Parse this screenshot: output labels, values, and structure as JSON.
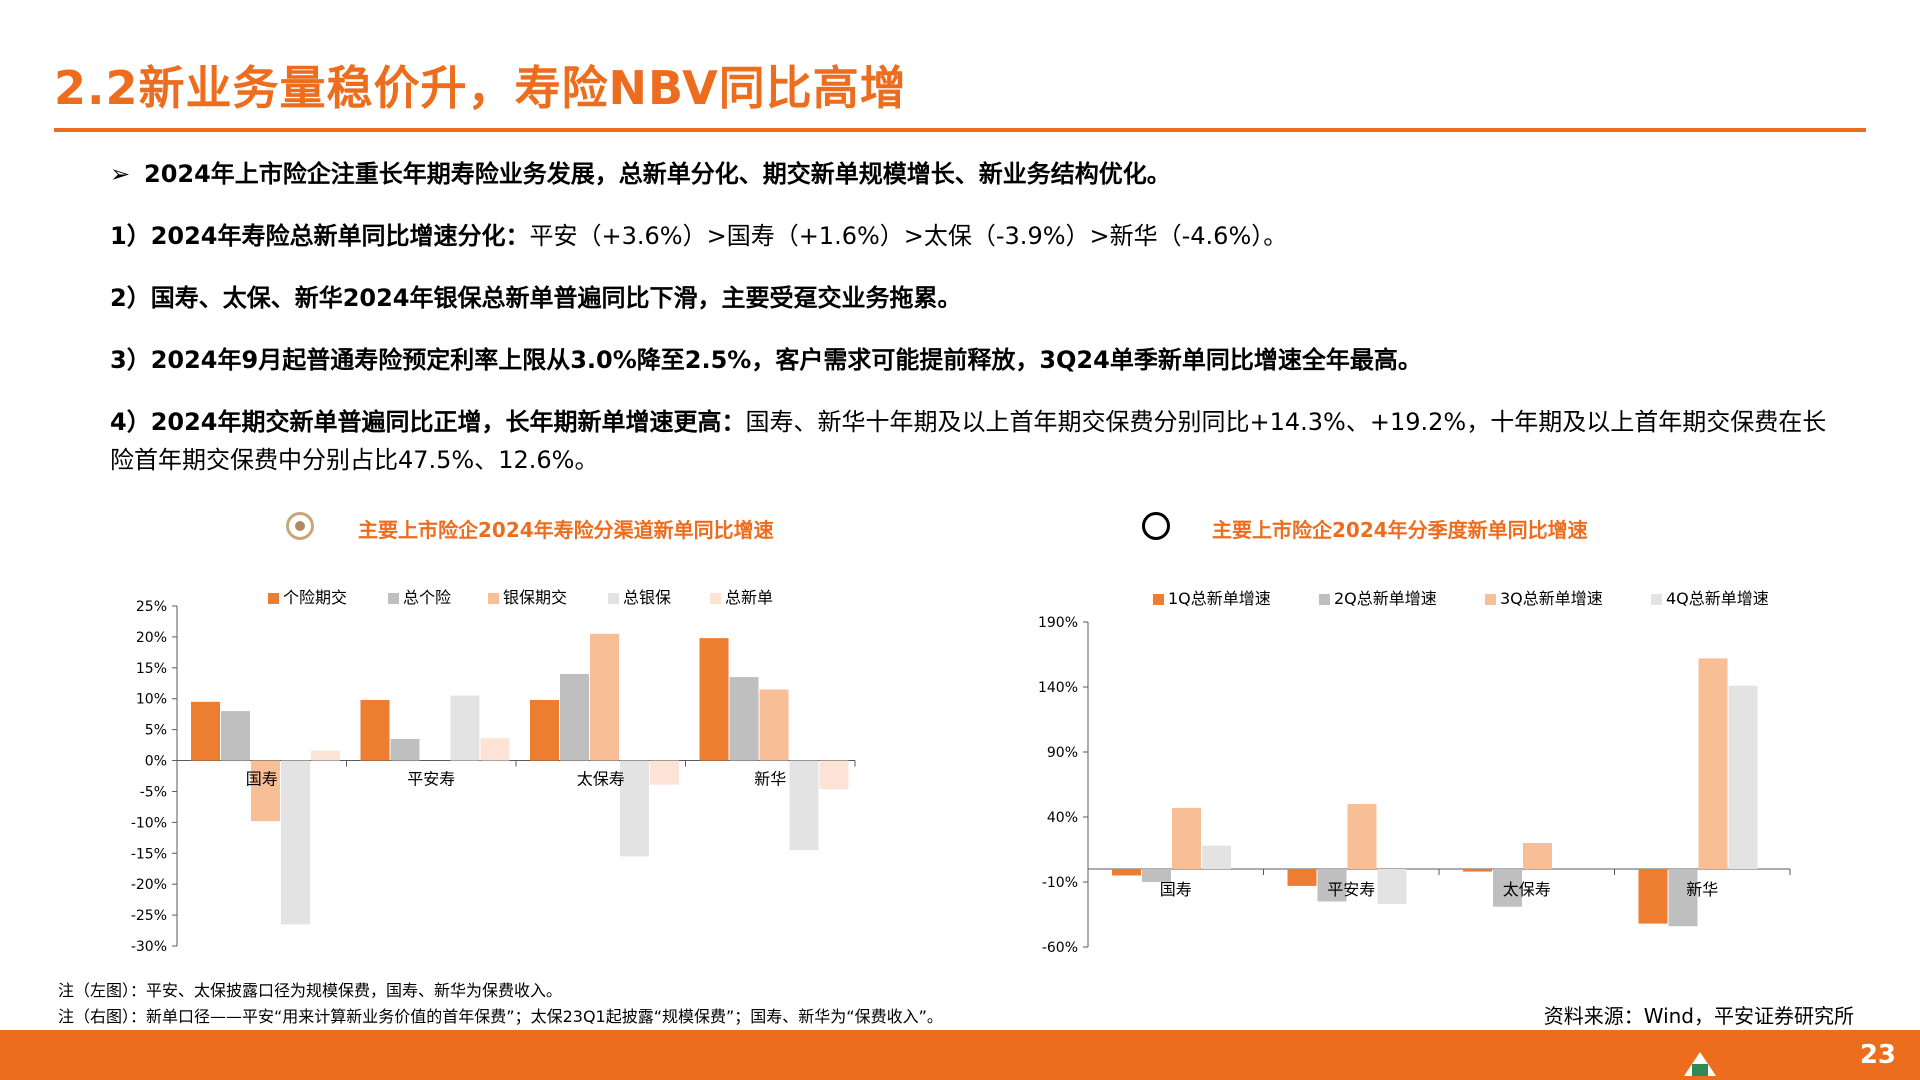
{
  "title": "2.2新业务量稳价升，寿险NBV同比高增",
  "bullets": {
    "lead": {
      "marker": "➢",
      "text": "2024年上市险企注重长年期寿险业务发展，总新单分化、期交新单规模增长、新业务结构优化。"
    },
    "p1": {
      "bold": "1）2024年寿险总新单同比增速分化：",
      "normal": "平安（+3.6%）>国寿（+1.6%）>太保（-3.9%）>新华（-4.6%）。"
    },
    "p2": {
      "bold": "2）国寿、太保、新华2024年银保总新单普遍同比下滑，主要受趸交业务拖累。",
      "normal": ""
    },
    "p3": {
      "bold": "3）2024年9月起普通寿险预定利率上限从3.0%降至2.5%，客户需求可能提前释放，3Q24单季新单同比增速全年最高。",
      "normal": ""
    },
    "p4": {
      "bold": "4）2024年期交新单普遍同比正增，长年期新单增速更高：",
      "normal": "国寿、新华十年期及以上首年期交保费分别同比+14.3%、+19.2%，十年期及以上首年期交保费在长险首年期交保费中分别占比47.5%、12.6%。"
    }
  },
  "chart_titles": {
    "left": "主要上市险企2024年寿险分渠道新单同比增速",
    "right": "主要上市险企2024年分季度新单同比增速"
  },
  "chart_data": [
    {
      "type": "bar",
      "categories": [
        "国寿",
        "平安寿",
        "太保寿",
        "新华"
      ],
      "series": [
        {
          "name": "个险期交",
          "color": "#ED7D31",
          "values": [
            9.5,
            9.8,
            9.8,
            19.8
          ]
        },
        {
          "name": "总个险",
          "color": "#BFBFBF",
          "values": [
            8.0,
            3.5,
            14.0,
            13.5
          ]
        },
        {
          "name": "银保期交",
          "color": "#F8BF96",
          "values": [
            -9.8,
            null,
            20.5,
            11.5
          ]
        },
        {
          "name": "总银保",
          "color": "#E3E3E3",
          "values": [
            -26.5,
            10.5,
            -15.5,
            -14.5
          ]
        },
        {
          "name": "总新单",
          "color": "#FCE3D5",
          "values": [
            1.6,
            3.6,
            -3.9,
            -4.6
          ]
        }
      ],
      "y_ticks": [
        "25%",
        "20%",
        "15%",
        "10%",
        "5%",
        "0%",
        "-5%",
        "-10%",
        "-15%",
        "-20%",
        "-25%",
        "-30%"
      ],
      "ylim": [
        -30,
        25
      ],
      "legend": "top"
    },
    {
      "type": "bar",
      "categories": [
        "国寿",
        "平安寿",
        "太保寿",
        "新华"
      ],
      "series": [
        {
          "name": "1Q总新单增速",
          "color": "#ED7D31",
          "values": [
            -5,
            -13,
            -2,
            -42
          ]
        },
        {
          "name": "2Q总新单增速",
          "color": "#BFBFBF",
          "values": [
            -10,
            -25,
            -29,
            -44
          ]
        },
        {
          "name": "3Q总新单增速",
          "color": "#F8BF96",
          "values": [
            47,
            50,
            20,
            162
          ]
        },
        {
          "name": "4Q总新单增速",
          "color": "#E3E3E3",
          "values": [
            18,
            -27,
            null,
            141
          ]
        }
      ],
      "y_ticks": [
        "190%",
        "140%",
        "90%",
        "40%",
        "-10%",
        "-60%"
      ],
      "ylim": [
        -60,
        190
      ],
      "legend": "top"
    }
  ],
  "notes": {
    "left": "注（左图）：平安、太保披露口径为规模保费，国寿、新华为保费收入。",
    "right": "注（右图）：新单口径——平安“用来计算新业务价值的首年保费”；太保23Q1起披露“规模保费”；国寿、新华为“保费收入”。"
  },
  "source": "资料来源：Wind，平安证券研究所",
  "page_number": "23"
}
